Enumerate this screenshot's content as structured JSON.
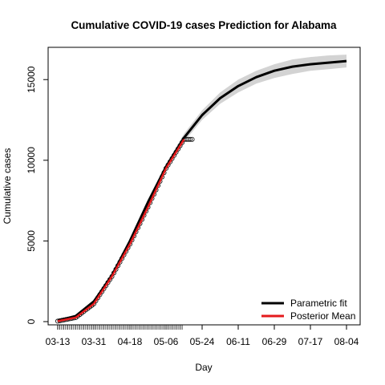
{
  "chart_data": {
    "type": "line",
    "title": "Cumulative COVID-19 cases Prediction for Alabama",
    "xlabel": "Day",
    "ylabel": "Cumulative cases",
    "x_tick_labels": [
      "03-13",
      "03-31",
      "04-18",
      "05-06",
      "05-24",
      "06-11",
      "06-29",
      "07-17",
      "08-04"
    ],
    "y_ticks": [
      0,
      5000,
      10000,
      15000
    ],
    "ylim": [
      -200,
      17000
    ],
    "legend": {
      "position": "bottom-right",
      "entries": [
        {
          "label": "Parametric fit",
          "color": "#000000"
        },
        {
          "label": "Posterior Mean",
          "color": "#e41a1c"
        }
      ]
    },
    "series": [
      {
        "name": "Parametric fit",
        "color": "#000000",
        "x": [
          "03-13",
          "03-22",
          "03-31",
          "04-09",
          "04-18",
          "04-27",
          "05-06",
          "05-15",
          "05-24",
          "06-02",
          "06-11",
          "06-20",
          "06-29",
          "07-08",
          "07-17",
          "07-26",
          "08-04"
        ],
        "y": [
          50,
          350,
          1250,
          2850,
          5000,
          7400,
          9600,
          11400,
          12800,
          13850,
          14600,
          15150,
          15550,
          15800,
          15950,
          16050,
          16150
        ]
      },
      {
        "name": "Posterior Mean",
        "color": "#e41a1c",
        "x": [
          "03-13",
          "03-22",
          "03-31",
          "04-09",
          "04-18",
          "04-27",
          "05-06",
          "05-15"
        ],
        "y": [
          30,
          250,
          1100,
          2800,
          4800,
          7100,
          9500,
          11300
        ]
      }
    ],
    "band": {
      "lower": [
        20,
        300,
        1150,
        2750,
        4900,
        7300,
        9450,
        11150,
        12500,
        13500,
        14200,
        14750,
        15100,
        15350,
        15550,
        15650,
        15750
      ],
      "upper": [
        80,
        400,
        1350,
        2950,
        5100,
        7500,
        9750,
        11650,
        13100,
        14200,
        15000,
        15550,
        15950,
        16250,
        16400,
        16500,
        16550
      ],
      "color": "#d3d3d3"
    },
    "grid": false
  }
}
